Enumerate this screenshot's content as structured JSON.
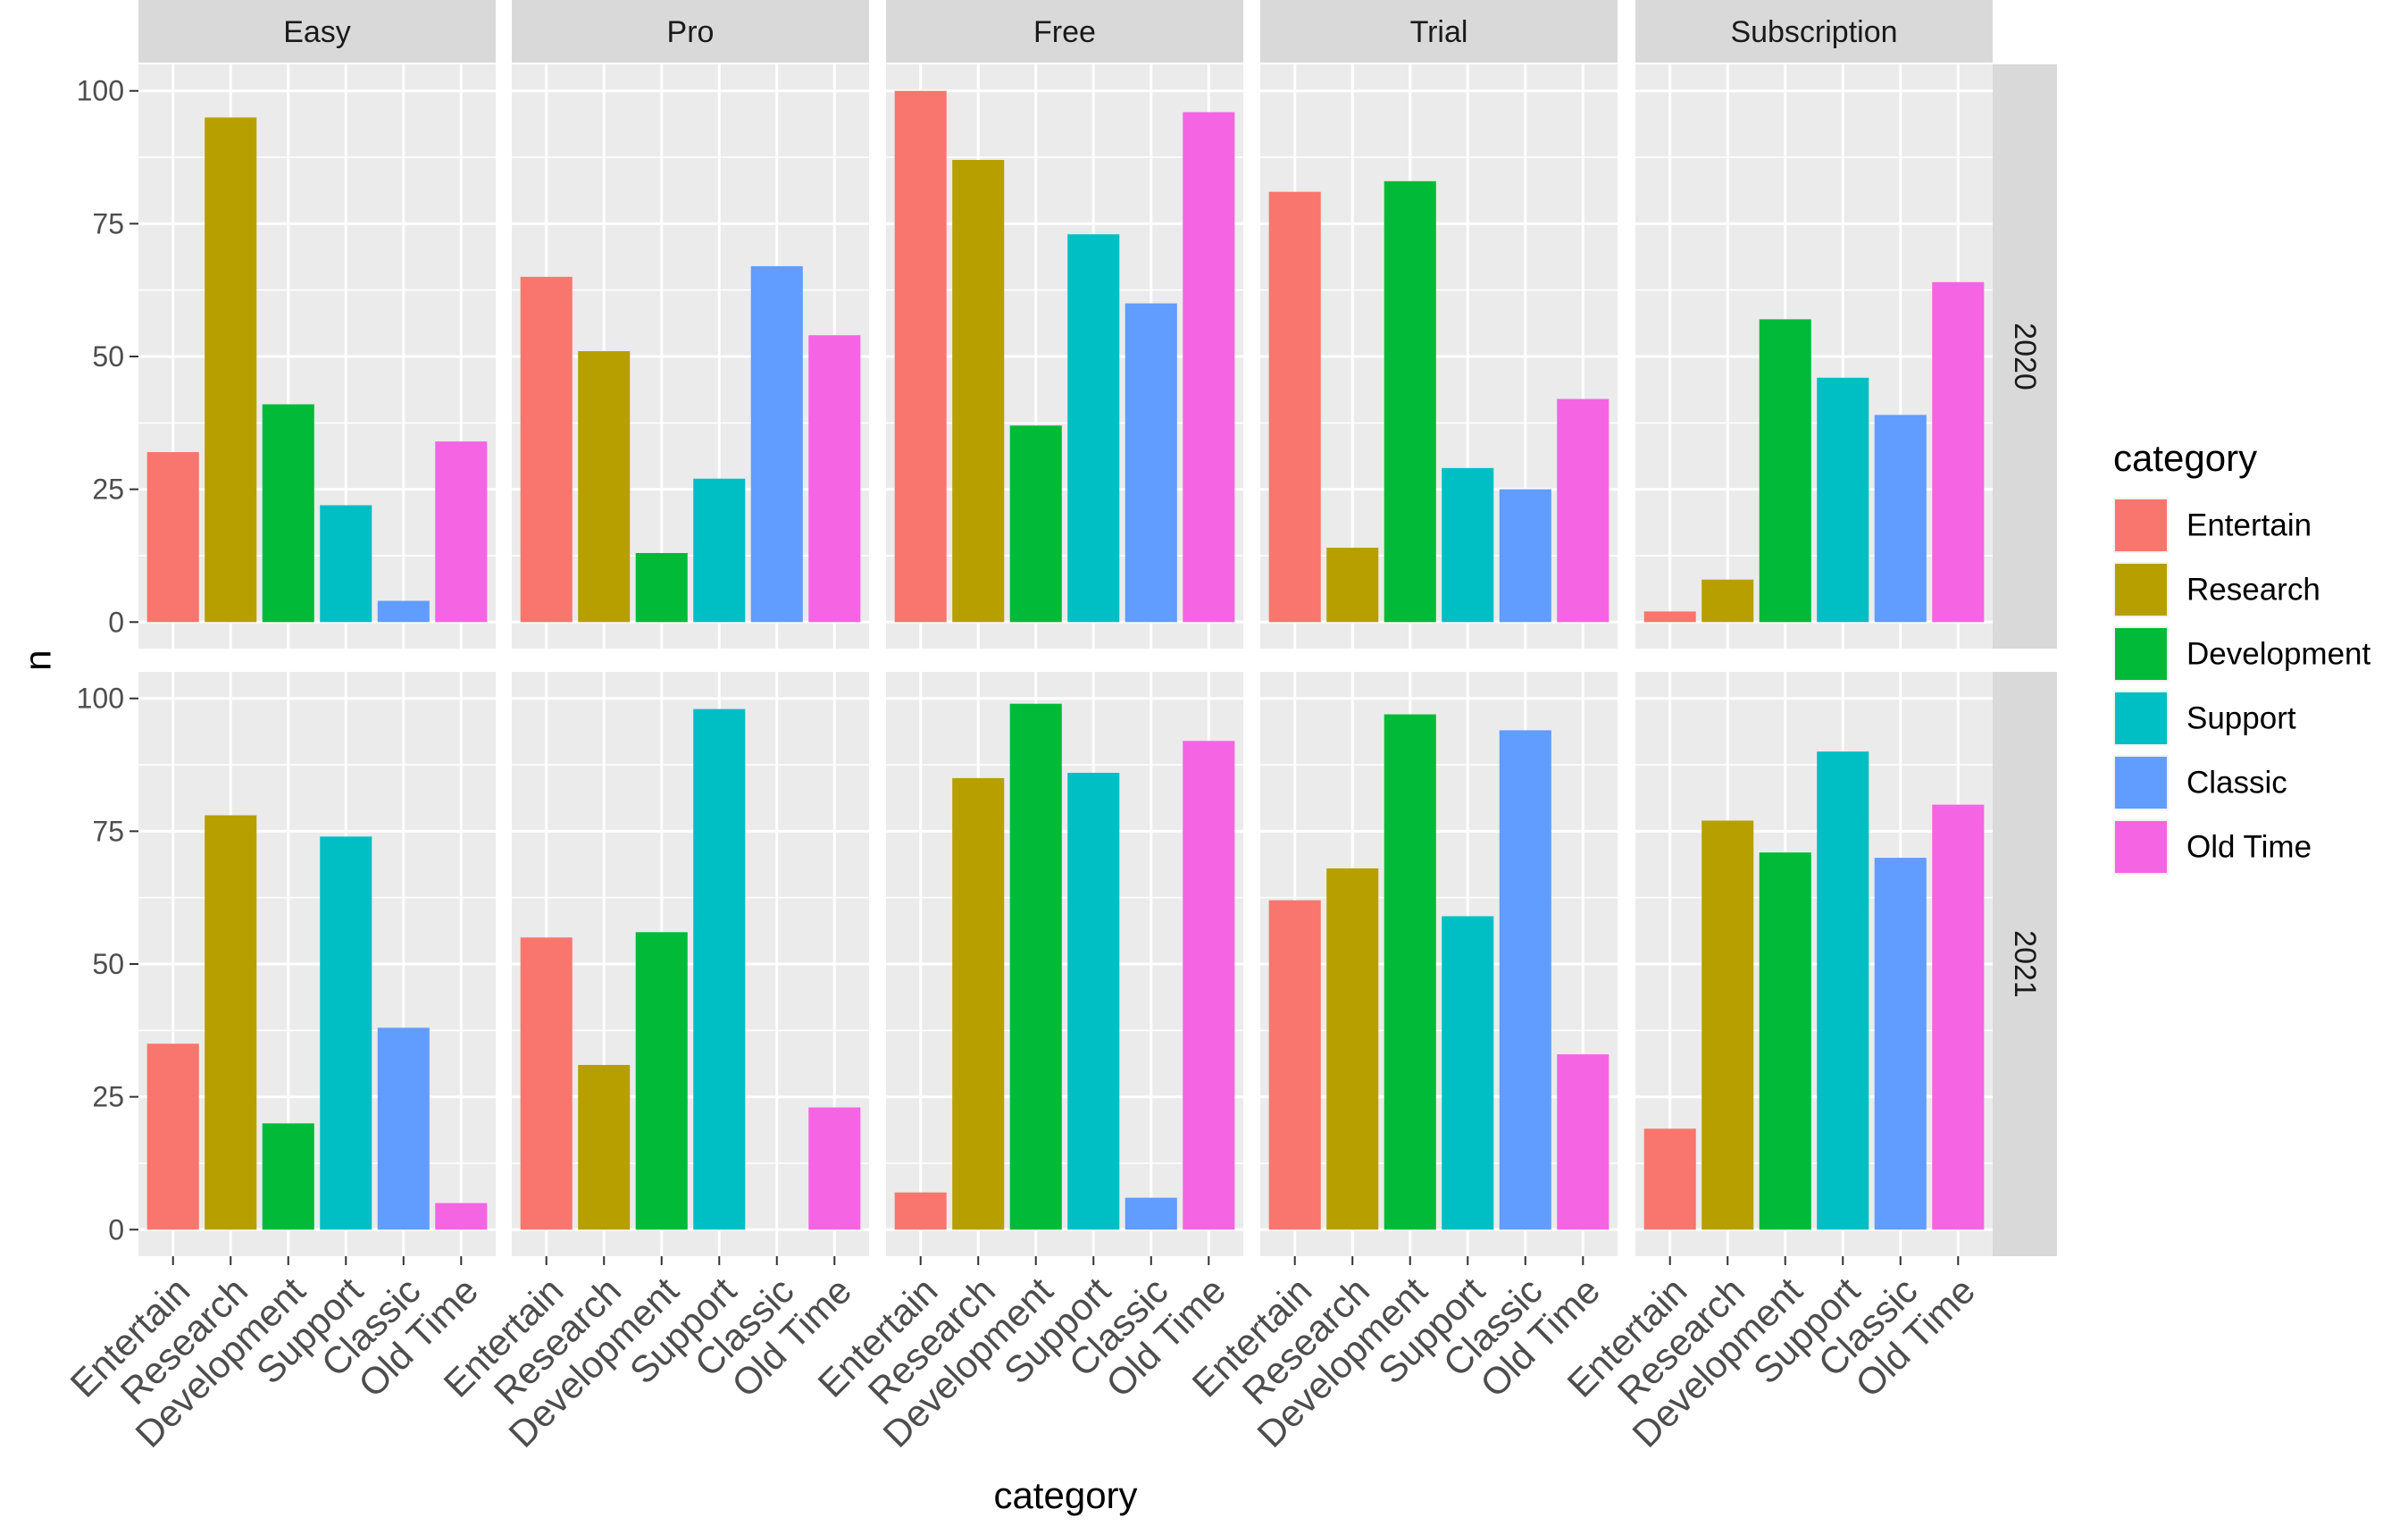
{
  "chart_data": {
    "type": "bar",
    "facet_columns": [
      "Easy",
      "Pro",
      "Free",
      "Trial",
      "Subscription"
    ],
    "facet_rows": [
      "2020",
      "2021"
    ],
    "categories": [
      "Entertain",
      "Research",
      "Development",
      "Support",
      "Classic",
      "Old Time"
    ],
    "xlabel": "category",
    "ylabel": "n",
    "ylim": [
      0,
      100
    ],
    "yticks": [
      "0",
      "25",
      "50",
      "75",
      "100"
    ],
    "grid": true,
    "legend": {
      "title": "category",
      "placement": "right",
      "entries": [
        "Entertain",
        "Research",
        "Development",
        "Support",
        "Classic",
        "Old Time"
      ]
    },
    "colors": {
      "Entertain": "#F8766D",
      "Research": "#B79F00",
      "Development": "#00BA38",
      "Support": "#00BFC4",
      "Classic": "#619CFF",
      "Old Time": "#F564E3"
    },
    "panels": [
      {
        "row": "2020",
        "col": "Easy",
        "values": [
          32,
          95,
          41,
          22,
          4,
          34
        ]
      },
      {
        "row": "2020",
        "col": "Pro",
        "values": [
          65,
          51,
          13,
          27,
          67,
          54
        ]
      },
      {
        "row": "2020",
        "col": "Free",
        "values": [
          100,
          87,
          37,
          73,
          60,
          96
        ]
      },
      {
        "row": "2020",
        "col": "Trial",
        "values": [
          81,
          14,
          83,
          29,
          25,
          42
        ]
      },
      {
        "row": "2020",
        "col": "Subscription",
        "values": [
          2,
          8,
          57,
          46,
          39,
          64
        ]
      },
      {
        "row": "2021",
        "col": "Easy",
        "values": [
          35,
          78,
          20,
          74,
          38,
          5
        ]
      },
      {
        "row": "2021",
        "col": "Pro",
        "values": [
          55,
          31,
          56,
          98,
          0,
          23
        ]
      },
      {
        "row": "2021",
        "col": "Free",
        "values": [
          7,
          85,
          99,
          86,
          6,
          92
        ]
      },
      {
        "row": "2021",
        "col": "Trial",
        "values": [
          62,
          68,
          97,
          59,
          94,
          33
        ]
      },
      {
        "row": "2021",
        "col": "Subscription",
        "values": [
          19,
          77,
          71,
          90,
          70,
          80
        ]
      }
    ]
  }
}
